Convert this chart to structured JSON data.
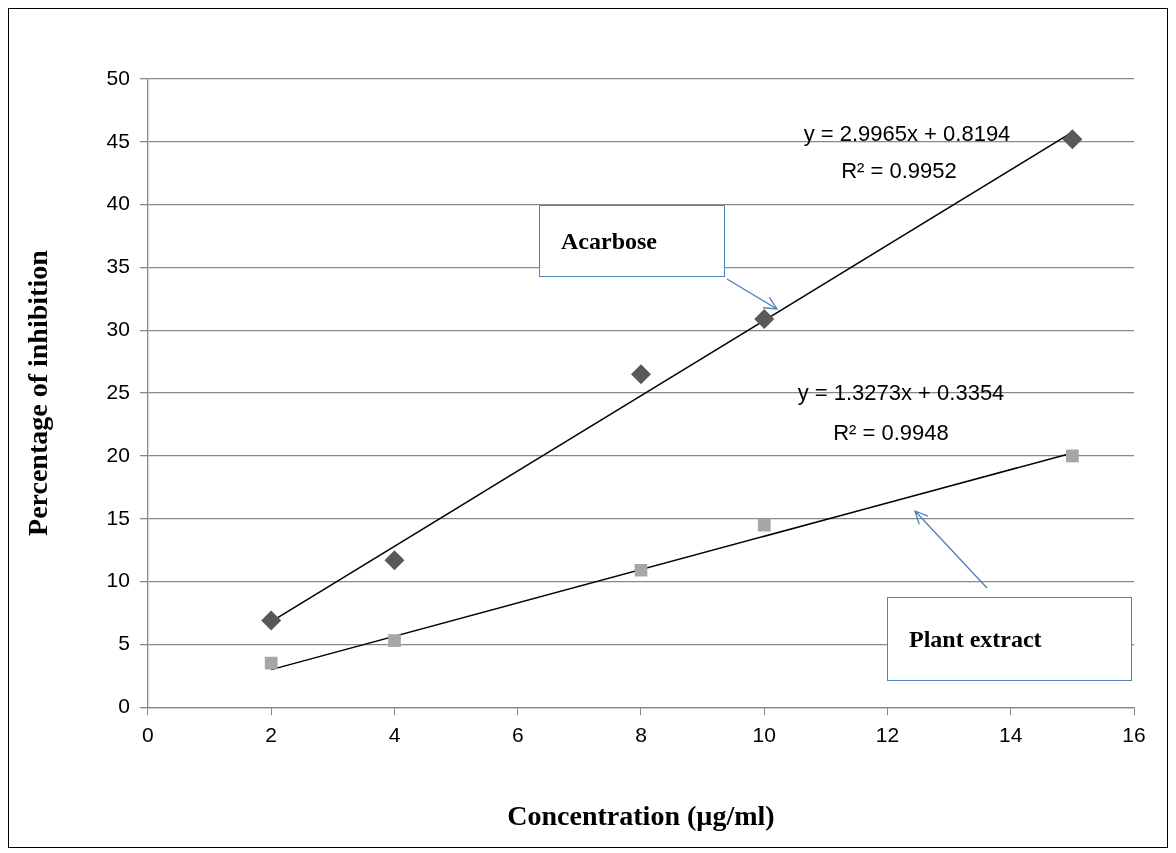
{
  "chart_data": {
    "type": "scatter",
    "xlabel": "Concentration (µg/ml)",
    "ylabel": "Percentage of inhibition",
    "xlim": [
      0,
      16
    ],
    "xticks": [
      0,
      2,
      4,
      6,
      8,
      10,
      12,
      14,
      16
    ],
    "ylim": [
      0,
      50
    ],
    "yticks": [
      0,
      5,
      10,
      15,
      20,
      25,
      30,
      35,
      40,
      45,
      50
    ],
    "grid": "y",
    "legend": false,
    "series": [
      {
        "type": "scatter",
        "color": "#595959",
        "marker": "diamond",
        "x": [
          2,
          4,
          8,
          10,
          15
        ],
        "values": [
          6.9,
          11.7,
          26.5,
          30.9,
          45.2
        ]
      },
      {
        "type": "scatter",
        "color": "#a6a6a6",
        "marker": "square",
        "x": [
          2,
          4,
          8,
          10,
          15
        ],
        "values": [
          3.5,
          5.3,
          10.9,
          14.5,
          20.0
        ]
      },
      {
        "type": "line",
        "color": "#000000",
        "marker": "none",
        "line_style": "solid",
        "x": [
          2,
          15
        ],
        "values": [
          6.81,
          45.77
        ]
      },
      {
        "type": "line",
        "color": "#000000",
        "marker": "none",
        "line_style": "solid",
        "x": [
          2,
          15
        ],
        "values": [
          2.99,
          20.24
        ]
      }
    ],
    "annotations": [
      "y = 2.9965x + 0.8194",
      "R² = 0.9952",
      "y = 1.3273x + 0.3354",
      "R² = 0.9948",
      "Acarbose",
      "Plant extract"
    ]
  }
}
